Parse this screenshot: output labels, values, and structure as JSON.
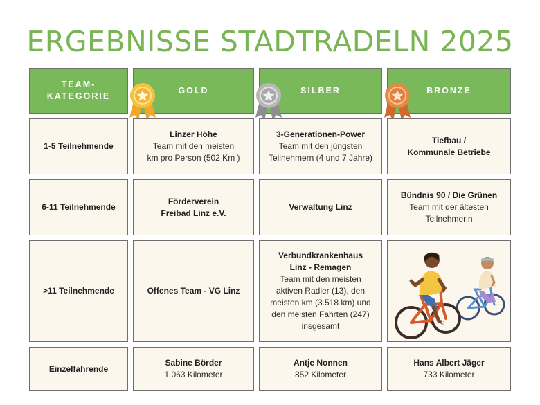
{
  "title": "ERGEBNISSE STADTRADELN 2025",
  "header": {
    "category_line1": "TEAM-",
    "category_line2": "KATEGORIE",
    "gold": "GOLD",
    "silver": "SILBER",
    "bronze": "BRONZE"
  },
  "rows": [
    {
      "label": "1-5 Teilnehmende",
      "gold": {
        "name": "Linzer Höhe",
        "detail1": "Team mit den meisten",
        "detail2": "km pro Person (502 Km )"
      },
      "silver": {
        "name": "3-Generationen-Power",
        "detail1": "Team mit den jüngsten",
        "detail2": "Teilnehmern (4 und 7 Jahre)"
      },
      "bronze": {
        "name1": "Tiefbau /",
        "name2": "Kommunale Betriebe"
      }
    },
    {
      "label": "6-11 Teilnehmende",
      "gold": {
        "name1": "Förderverein",
        "name2": "Freibad Linz e.V."
      },
      "silver": {
        "name": "Verwaltung Linz"
      },
      "bronze": {
        "name": "Bündnis 90 / Die Grünen",
        "detail1": "Team mit der ältesten",
        "detail2": "Teilnehmerin"
      }
    },
    {
      "label": ">11 Teilnehmende",
      "gold": {
        "name": "Offenes Team - VG Linz"
      },
      "silver": {
        "name1": "Verbundkrankenhaus",
        "name2": "Linz - Remagen",
        "detail1": "Team mit den meisten",
        "detail2": "aktiven Radler (13), den",
        "detail3": "meisten km (3.518 km) und",
        "detail4": "den meisten Fahrten (247)",
        "detail5": "insgesamt"
      }
    },
    {
      "label": "Einzelfahrende",
      "gold": {
        "name": "Sabine Börder",
        "detail": "1.063 Kilometer"
      },
      "silver": {
        "name": "Antje Nonnen",
        "detail": "852 Kilometer"
      },
      "bronze": {
        "name": "Hans Albert Jäger",
        "detail": "733 Kilometer"
      }
    }
  ],
  "icons": {
    "gold_medal": "gold-medal-icon",
    "silver_medal": "silver-medal-icon",
    "bronze_medal": "bronze-medal-icon",
    "cyclists": "cyclists-illustration"
  },
  "colors": {
    "title_green": "#7ab555",
    "header_green": "#79b95a",
    "cell_background": "#fcf7ec",
    "gold": "#f2b632",
    "silver": "#a9a9a9",
    "bronze": "#e0803a"
  }
}
